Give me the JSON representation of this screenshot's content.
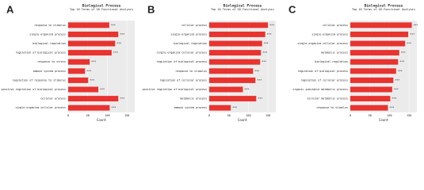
{
  "chart_data": [
    {
      "type": "bar",
      "panel": "A",
      "title": "Biological Process",
      "subtitle": "Top 10 Terms of GO Functional Analysis",
      "xlabel": "Count",
      "categories": [
        "response to stimulus",
        "single-organism process",
        "biological regulation",
        "regulation of biological process",
        "response to stress",
        "immune system process",
        "regulation of response to stimulus",
        "positive regulation of biological process",
        "cellular process",
        "single-organism cellular process"
      ],
      "values": [
        105,
        128,
        120,
        111,
        55,
        43,
        51,
        77,
        128,
        106
      ],
      "markers": [
        "***",
        "***",
        "***",
        "***",
        "***",
        "***",
        "***",
        "***",
        "***",
        "***"
      ],
      "color": "#e8332f",
      "xlim": [
        0,
        170
      ],
      "xticks": [
        0,
        50,
        100,
        150
      ],
      "grid": true
    },
    {
      "type": "bar",
      "panel": "B",
      "title": "Biological Process",
      "subtitle": "Top 10 Terms of GO Functional Analysis",
      "xlabel": "Count",
      "categories": [
        "cellular process",
        "single-organism process",
        "biological regulation",
        "single-organism cellular process",
        "regulation of biological process",
        "response to stimulus",
        "regulation of cellular process",
        "positive regulation of biological process",
        "metabolic process",
        "immune system process"
      ],
      "values": [
        150,
        143,
        135,
        132,
        130,
        112,
        118,
        86,
        120,
        55
      ],
      "markers": [
        "***",
        "***",
        "***",
        "***",
        "***",
        "***",
        "***",
        "***",
        "***",
        "***"
      ],
      "color": "#e8332f",
      "xlim": [
        0,
        170
      ],
      "xticks": [
        0,
        50,
        100,
        150
      ],
      "grid": true
    },
    {
      "type": "bar",
      "panel": "C",
      "title": "Biological Process",
      "subtitle": "Top 10 Terms of GO Functional Analysis",
      "xlabel": "Count",
      "categories": [
        "cellular process",
        "single-organism process",
        "single-organism cellular process",
        "metabolic process",
        "biological regulation",
        "regulation of biological process",
        "regulation of cellular process",
        "organic substance metabolic process",
        "cellular metabolic process",
        "response to stimulus"
      ],
      "values": [
        157,
        148,
        140,
        125,
        122,
        117,
        110,
        107,
        102,
        96
      ],
      "markers": [
        "***",
        "***",
        "***",
        "***",
        "***",
        "***",
        "***",
        "***",
        "***",
        "***"
      ],
      "color": "#e8332f",
      "xlim": [
        0,
        170
      ],
      "xticks": [
        0,
        50,
        100,
        150
      ],
      "grid": true
    }
  ]
}
